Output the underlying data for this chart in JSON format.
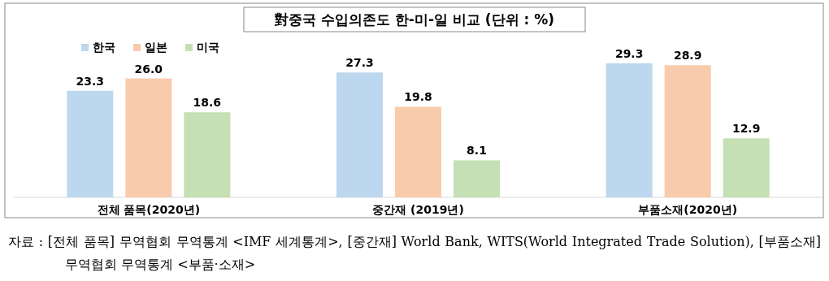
{
  "chart_data": {
    "type": "bar",
    "title": "對중국 수입의존도 한-미-일 비교 (단위 : %)",
    "categories": [
      "전체 품목(2020년)",
      "중간재 (2019년)",
      "부품소재(2020년)"
    ],
    "series": [
      {
        "name": "한국",
        "color": "#bdd7ee",
        "values": [
          23.3,
          27.3,
          29.3
        ],
        "value_labels": [
          "23.3",
          "27.3",
          "29.3"
        ]
      },
      {
        "name": "일본",
        "color": "#f8cbad",
        "values": [
          26.0,
          19.8,
          28.9
        ],
        "value_labels": [
          "26.0",
          "19.8",
          "28.9"
        ]
      },
      {
        "name": "미국",
        "color": "#c5e0b4",
        "values": [
          18.6,
          8.1,
          12.9
        ],
        "value_labels": [
          "18.6",
          "8.1",
          "12.9"
        ]
      }
    ],
    "legend": "top left",
    "annotations": [
      "자료 : [전체 품목] 무역협회 무역통계 <IMF 세계통계>, [중간재] World Bank, WITS(World Integrated Trade Solution), [부품소재] 무역협회 무역통계 <부품·소재>"
    ]
  }
}
